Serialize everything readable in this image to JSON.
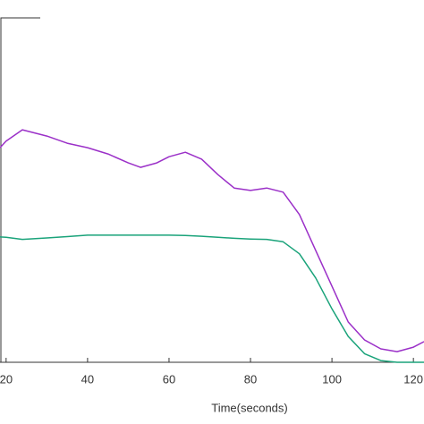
{
  "chart_data": {
    "type": "line",
    "xlabel": "Time(seconds)",
    "x": [
      18.5,
      20,
      24,
      30,
      35,
      40,
      45,
      50,
      53,
      57,
      60,
      64,
      68,
      72,
      76,
      80,
      84,
      88,
      92,
      96,
      100,
      104,
      108,
      112,
      116,
      120,
      122.6
    ],
    "series": [
      {
        "color": "#9b30c8",
        "values": [
          62.3,
          64.2,
          67.5,
          65.7,
          63.6,
          62.3,
          60.5,
          57.9,
          56.6,
          57.9,
          59.7,
          61.0,
          59.0,
          54.5,
          50.6,
          49.9,
          50.6,
          49.4,
          42.9,
          32.5,
          22.1,
          11.7,
          6.5,
          3.9,
          3.1,
          4.4,
          6.0
        ]
      },
      {
        "color": "#1aa37a",
        "values": [
          36.4,
          36.3,
          35.7,
          36.1,
          36.5,
          36.9,
          36.9,
          36.9,
          36.9,
          36.9,
          36.9,
          36.8,
          36.6,
          36.3,
          36.0,
          35.8,
          35.7,
          35.0,
          31.5,
          24.5,
          15.5,
          7.5,
          2.5,
          0.5,
          0,
          0,
          0
        ]
      }
    ],
    "xlim": [
      18.5,
      122.6
    ],
    "xticks": [
      20,
      40,
      60,
      80,
      100,
      120
    ],
    "ylim": [
      0,
      100
    ]
  }
}
